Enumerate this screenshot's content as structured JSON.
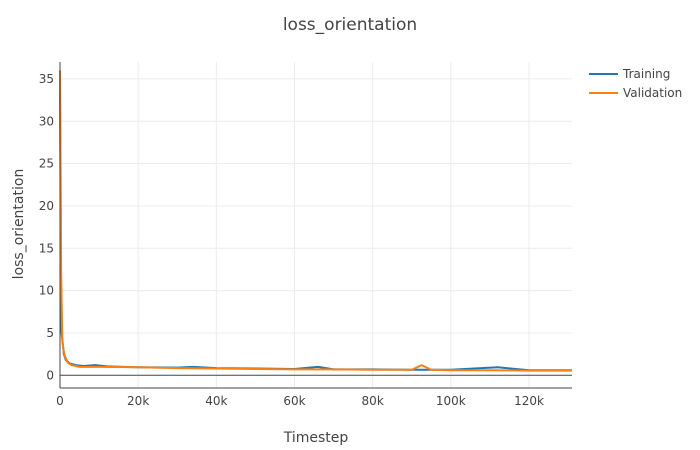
{
  "chart_data": {
    "type": "line",
    "title": "loss_orientation",
    "xlabel": "Timestep",
    "ylabel": "loss_orientation",
    "xlim": [
      0,
      131000
    ],
    "ylim": [
      -1.5,
      37
    ],
    "grid": true,
    "legend_position": "top-right",
    "x_ticks": [
      0,
      20000,
      40000,
      60000,
      80000,
      100000,
      120000
    ],
    "x_tick_labels": [
      "0",
      "20k",
      "40k",
      "60k",
      "80k",
      "100k",
      "120k"
    ],
    "y_ticks": [
      0,
      5,
      10,
      15,
      20,
      25,
      30,
      35
    ],
    "y_tick_labels": [
      "0",
      "5",
      "10",
      "15",
      "20",
      "25",
      "30",
      "35"
    ],
    "series": [
      {
        "name": "Training",
        "color": "#1f77b4",
        "points": [
          [
            0,
            35
          ],
          [
            200,
            15
          ],
          [
            400,
            5
          ],
          [
            700,
            3.8
          ],
          [
            1000,
            2.5
          ],
          [
            1500,
            1.8
          ],
          [
            2500,
            1.4
          ],
          [
            4000,
            1.2
          ],
          [
            6000,
            1.1
          ],
          [
            9000,
            1.2
          ],
          [
            12000,
            1.05
          ],
          [
            20000,
            0.95
          ],
          [
            30000,
            0.9
          ],
          [
            34000,
            1.0
          ],
          [
            40000,
            0.85
          ],
          [
            50000,
            0.8
          ],
          [
            60000,
            0.75
          ],
          [
            66000,
            1.0
          ],
          [
            70000,
            0.7
          ],
          [
            80000,
            0.7
          ],
          [
            90000,
            0.65
          ],
          [
            100000,
            0.65
          ],
          [
            112000,
            0.95
          ],
          [
            120000,
            0.6
          ],
          [
            131000,
            0.6
          ]
        ]
      },
      {
        "name": "Validation",
        "color": "#ff7f0e",
        "points": [
          [
            0,
            36
          ],
          [
            150,
            25
          ],
          [
            300,
            12
          ],
          [
            600,
            4
          ],
          [
            900,
            3
          ],
          [
            1300,
            2.2
          ],
          [
            2000,
            1.5
          ],
          [
            3000,
            1.2
          ],
          [
            5000,
            1.0
          ],
          [
            10000,
            1.0
          ],
          [
            20000,
            0.95
          ],
          [
            30000,
            0.85
          ],
          [
            40000,
            0.8
          ],
          [
            50000,
            0.75
          ],
          [
            60000,
            0.7
          ],
          [
            70000,
            0.7
          ],
          [
            80000,
            0.65
          ],
          [
            90000,
            0.65
          ],
          [
            92500,
            1.2
          ],
          [
            95000,
            0.65
          ],
          [
            100000,
            0.6
          ],
          [
            110000,
            0.6
          ],
          [
            120000,
            0.55
          ],
          [
            131000,
            0.55
          ]
        ]
      }
    ]
  }
}
